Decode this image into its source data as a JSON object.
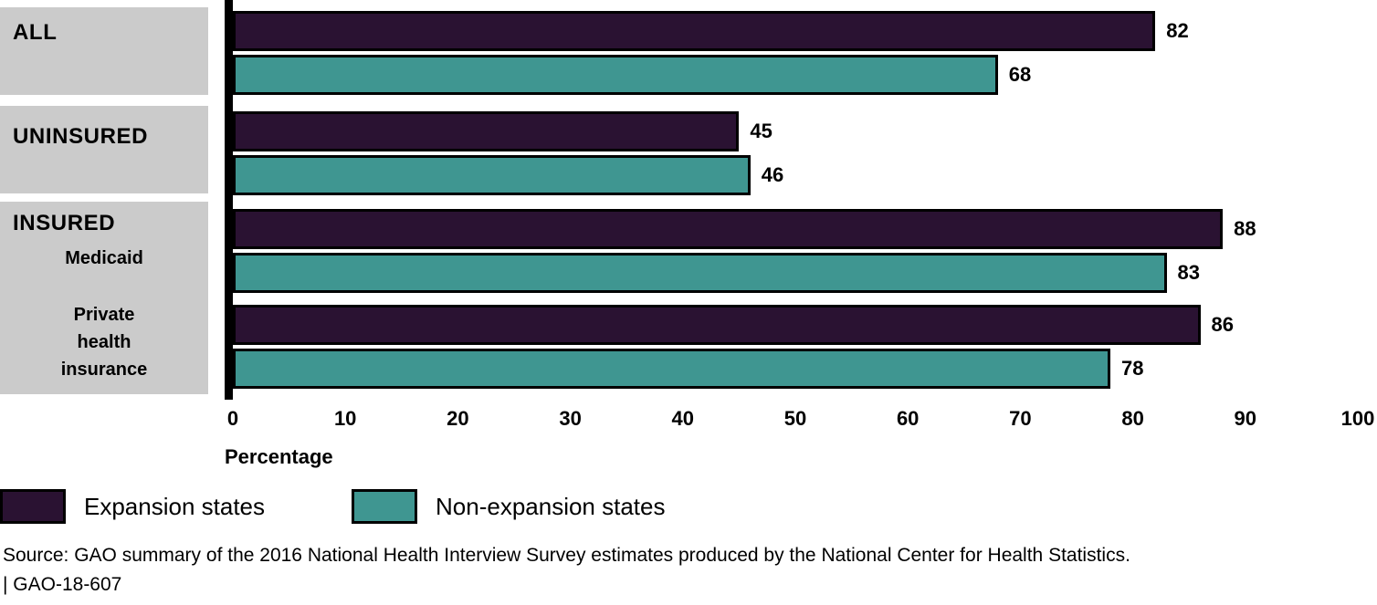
{
  "chart_data": {
    "type": "bar",
    "orientation": "horizontal",
    "title": "",
    "xlabel": "Percentage",
    "xlim": [
      0,
      100
    ],
    "xticks": [
      0,
      10,
      20,
      30,
      40,
      50,
      60,
      70,
      80,
      90,
      100
    ],
    "grid": false,
    "legend_position": "bottom-left",
    "series": [
      {
        "name": "Expansion states",
        "color": "#2a1232"
      },
      {
        "name": "Non-expansion states",
        "color": "#3f9691"
      }
    ],
    "categories": [
      "ALL",
      "UNINSURED",
      "INSURED: Medicaid",
      "INSURED: Private health insurance"
    ],
    "groups": [
      {
        "header": "ALL",
        "rows": [
          {
            "sublabel": "",
            "values": [
              82,
              68
            ]
          }
        ]
      },
      {
        "header": "UNINSURED",
        "rows": [
          {
            "sublabel": "",
            "values": [
              45,
              46
            ]
          }
        ]
      },
      {
        "header": "INSURED",
        "rows": [
          {
            "sublabel": "Medicaid",
            "values": [
              88,
              83
            ]
          },
          {
            "sublabel": "Private health insurance",
            "values": [
              86,
              78
            ]
          }
        ]
      }
    ]
  },
  "colors": {
    "expansion": "#2a1232",
    "non_expansion": "#3f9691",
    "category_box": "#cbcbcb",
    "axis": "#000000"
  },
  "source": {
    "line1": "Source: GAO summary of the 2016 National Health Interview Survey estimates produced by the National Center for Health Statistics.",
    "line2": "|  GAO-18-607"
  }
}
